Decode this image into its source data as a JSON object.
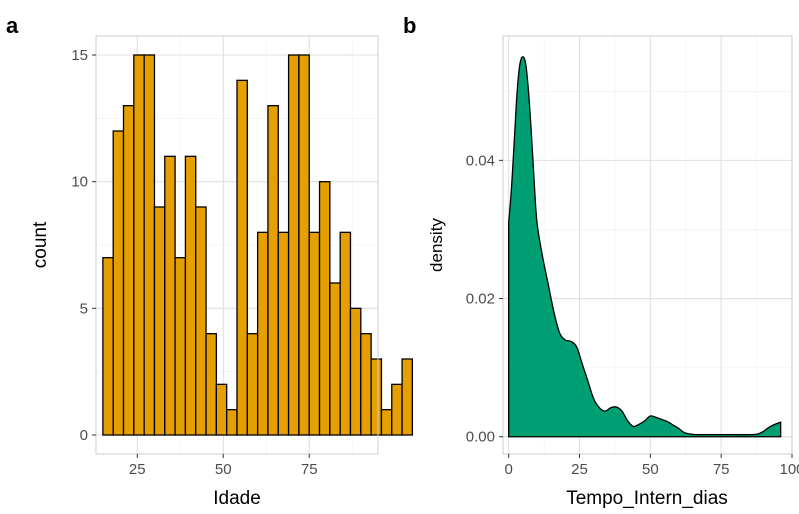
{
  "panels": [
    {
      "tag": "a"
    },
    {
      "tag": "b"
    }
  ],
  "chart_data": [
    {
      "type": "bar",
      "subtype": "histogram",
      "title": "",
      "xlabel": "Idade",
      "ylabel": "count",
      "bin_width": 3,
      "x_start": 15,
      "values": [
        7,
        12,
        13,
        15,
        15,
        9,
        11,
        7,
        11,
        9,
        4,
        2,
        1,
        14,
        4,
        8,
        13,
        8,
        15,
        15,
        8,
        10,
        6,
        8,
        5,
        4,
        3,
        1,
        2,
        3
      ],
      "xlim": [
        13,
        95
      ],
      "ylim": [
        -0.75,
        15.75
      ],
      "xticks": [
        25,
        50,
        75
      ],
      "yticks": [
        0,
        5,
        10,
        15
      ],
      "colors": {
        "fill": "#E69F00",
        "outline": "#000000"
      },
      "grid": true
    },
    {
      "type": "area",
      "subtype": "density",
      "title": "",
      "xlabel": "Tempo_Intern_dias",
      "ylabel": "density",
      "x": [
        0,
        1,
        2,
        3,
        4,
        5,
        6,
        7,
        8,
        9,
        10,
        12,
        14,
        16,
        18,
        20,
        22,
        24,
        26,
        28,
        30,
        32,
        34,
        36,
        38,
        40,
        42,
        44,
        46,
        48,
        50,
        52,
        54,
        56,
        58,
        60,
        62,
        64,
        66,
        68,
        70,
        75,
        80,
        85,
        88,
        90,
        92,
        94,
        96
      ],
      "y": [
        0.031,
        0.036,
        0.043,
        0.05,
        0.054,
        0.055,
        0.054,
        0.05,
        0.044,
        0.037,
        0.031,
        0.026,
        0.022,
        0.018,
        0.015,
        0.014,
        0.0138,
        0.013,
        0.0105,
        0.008,
        0.0055,
        0.0042,
        0.0037,
        0.0042,
        0.0043,
        0.0037,
        0.0023,
        0.0015,
        0.0018,
        0.0023,
        0.003,
        0.0028,
        0.0025,
        0.0022,
        0.0017,
        0.0012,
        0.0006,
        0.0004,
        0.0003,
        0.0003,
        0.0003,
        0.0003,
        0.0003,
        0.0003,
        0.0004,
        0.0008,
        0.0014,
        0.0018,
        0.0021
      ],
      "xlim": [
        -2,
        100
      ],
      "ylim": [
        -0.0025,
        0.058
      ],
      "xticks": [
        0,
        25,
        50,
        75,
        100
      ],
      "yticks": [
        0.0,
        0.02,
        0.04
      ],
      "ytick_labels": [
        "0.00",
        "0.02",
        "0.04"
      ],
      "colors": {
        "fill": "#009E73",
        "outline": "#000000"
      },
      "grid": true
    }
  ]
}
